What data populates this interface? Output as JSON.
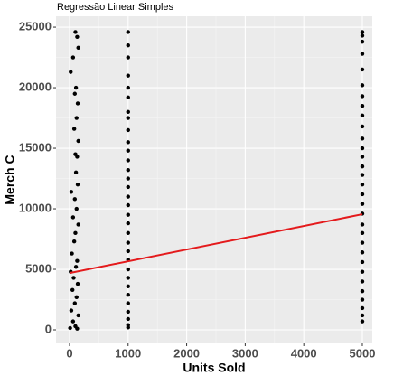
{
  "chart_data": {
    "type": "scatter",
    "title": "Regressão Linear Simples",
    "xlabel": "Units Sold",
    "ylabel": "Merch C",
    "color": "#000000",
    "x": [
      100,
      130,
      150,
      60,
      20,
      110,
      90,
      140,
      120,
      80,
      150,
      100,
      130,
      30,
      110,
      140,
      90,
      120,
      60,
      150,
      100,
      80,
      40,
      130,
      110,
      20,
      70,
      140,
      50,
      120,
      90,
      30,
      150,
      60,
      100,
      10,
      130,
      1000,
      1000,
      1000,
      1000,
      1000,
      1000,
      1000,
      1000,
      1000,
      1000,
      1000,
      1000,
      1000,
      1000,
      1000,
      1000,
      1000,
      1000,
      1000,
      1000,
      1000,
      1000,
      1000,
      1000,
      1000,
      1000,
      1000,
      1000,
      1000,
      1000,
      1000,
      1000,
      5000,
      5000,
      5000,
      5000,
      5000,
      5000,
      5000,
      5000,
      5000,
      5000,
      5000,
      5000,
      5000,
      5000,
      5000,
      5000,
      5000,
      5000,
      5000,
      5000,
      5000,
      5000,
      5000,
      5000,
      5000,
      5000,
      5000,
      5000,
      5000,
      5000,
      5000
    ],
    "y": [
      24600,
      24200,
      23300,
      22500,
      21300,
      20000,
      19500,
      18700,
      17500,
      16600,
      15600,
      14500,
      14300,
      11400,
      13000,
      12000,
      10800,
      10000,
      9300,
      8700,
      8000,
      7300,
      6300,
      5700,
      5200,
      4800,
      4300,
      3800,
      3300,
      2700,
      2200,
      1600,
      1200,
      700,
      300,
      150,
      100,
      24600,
      23500,
      22500,
      21000,
      20000,
      19200,
      18000,
      17500,
      16500,
      15500,
      14800,
      14000,
      13200,
      12500,
      11800,
      11000,
      10300,
      9500,
      8800,
      8000,
      7200,
      6500,
      5800,
      5000,
      4300,
      3600,
      2900,
      2200,
      1500,
      900,
      400,
      200,
      24600,
      24300,
      23800,
      22800,
      21500,
      20200,
      19300,
      18500,
      17700,
      16800,
      15800,
      15000,
      14300,
      13500,
      12800,
      12000,
      11200,
      10400,
      9600,
      8700,
      8000,
      7200,
      6400,
      5600,
      4800,
      4000,
      3200,
      2500,
      1800,
      1200,
      700
    ],
    "line": {
      "color": "#e41a1c",
      "x": [
        10,
        5000
      ],
      "y": [
        4700,
        9550
      ]
    },
    "xlim": [
      -231,
      5170
    ],
    "xticks": [
      0,
      1000,
      2000,
      3000,
      4000,
      5000
    ],
    "ylim": [
      -1119,
      25900
    ],
    "yticks": [
      0,
      5000,
      10000,
      15000,
      20000,
      25000
    ],
    "xminor": [
      500,
      1500,
      2500,
      3500,
      4500
    ],
    "yminor": [
      2500,
      7500,
      12500,
      17500,
      22500
    ],
    "grid": true
  }
}
